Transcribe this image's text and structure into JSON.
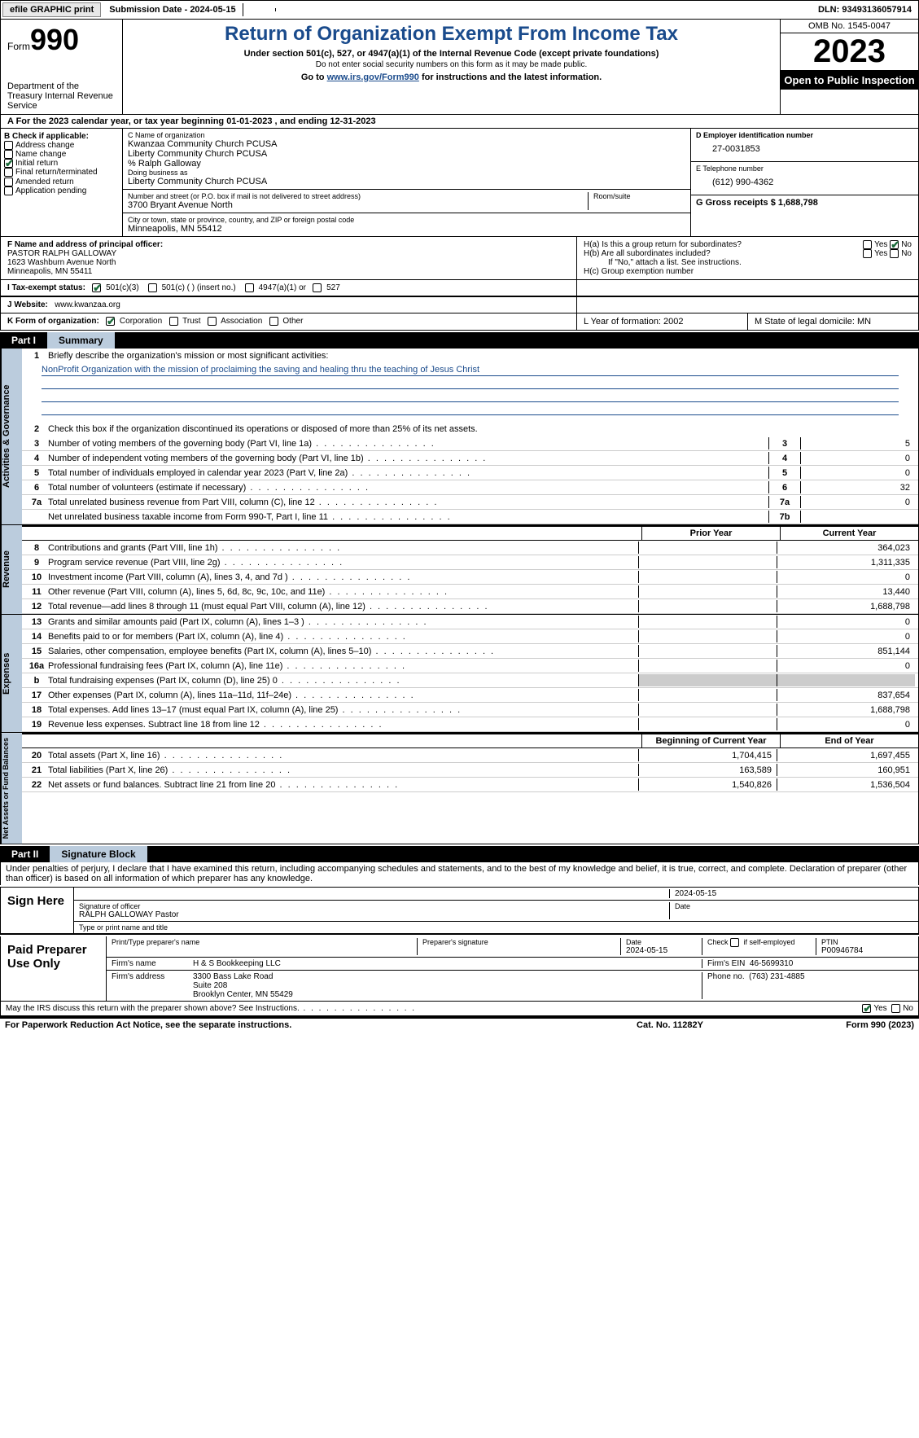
{
  "topbar": {
    "efile": "efile GRAPHIC print",
    "submission_label": "Submission Date - 2024-05-15",
    "dln": "DLN: 93493136057914"
  },
  "header": {
    "form_word": "Form",
    "form_num": "990",
    "title": "Return of Organization Exempt From Income Tax",
    "subtitle": "Under section 501(c), 527, or 4947(a)(1) of the Internal Revenue Code (except private foundations)",
    "note": "Do not enter social security numbers on this form as it may be made public.",
    "goto_pre": "Go to ",
    "goto_link": "www.irs.gov/Form990",
    "goto_post": " for instructions and the latest information.",
    "dept": "Department of the Treasury Internal Revenue Service",
    "omb": "OMB No. 1545-0047",
    "year": "2023",
    "open": "Open to Public Inspection"
  },
  "section_a": "A For the 2023 calendar year, or tax year beginning 01-01-2023    , and ending 12-31-2023",
  "col_b": {
    "header": "B Check if applicable:",
    "items": [
      "Address change",
      "Name change",
      "Initial return",
      "Final return/terminated",
      "Amended return",
      "Application pending"
    ],
    "checked_idx": 2
  },
  "col_c": {
    "name_label": "C Name of organization",
    "name1": "Kwanzaa Community Church PCUSA",
    "name2": "Liberty Community Church PCUSA",
    "name3": "% Ralph Galloway",
    "dba_label": "Doing business as",
    "dba": "Liberty Community Church PCUSA",
    "street_label": "Number and street (or P.O. box if mail is not delivered to street address)",
    "street": "3700 Bryant Avenue North",
    "room_label": "Room/suite",
    "city_label": "City or town, state or province, country, and ZIP or foreign postal code",
    "city": "Minneapolis, MN  55412"
  },
  "col_de": {
    "d_label": "D Employer identification number",
    "d_val": "27-0031853",
    "e_label": "E Telephone number",
    "e_val": "(612) 990-4362",
    "g_label": "G Gross receipts $ 1,688,798"
  },
  "row_f": {
    "f_label": "F  Name and address of principal officer:",
    "f_name": "PASTOR RALPH GALLOWAY",
    "f_addr1": "1623 Washburn Avenue North",
    "f_addr2": "Minneapolis, MN  55411",
    "ha_label": "H(a)  Is this a group return for subordinates?",
    "hb_label": "H(b)  Are all subordinates included?",
    "hb_note": "If \"No,\" attach a list. See instructions.",
    "hc_label": "H(c)  Group exemption number",
    "yes": "Yes",
    "no": "No"
  },
  "row_i": {
    "i_label": "I    Tax-exempt status:",
    "opts": [
      "501(c)(3)",
      "501(c) (  ) (insert no.)",
      "4947(a)(1) or",
      "527"
    ]
  },
  "row_j": {
    "j_label": "J    Website:",
    "j_val": "www.kwanzaa.org"
  },
  "row_k": {
    "k_label": "K Form of organization:",
    "opts": [
      "Corporation",
      "Trust",
      "Association",
      "Other"
    ],
    "l_label": "L Year of formation: 2002",
    "m_label": "M State of legal domicile: MN"
  },
  "part1": {
    "num": "Part I",
    "title": "Summary"
  },
  "summary": {
    "tab1": "Activities & Governance",
    "tab2": "Revenue",
    "tab3": "Expenses",
    "tab4": "Net Assets or Fund Balances",
    "line1_label": "Briefly describe the organization's mission or most significant activities:",
    "line1_mission": "NonProfit Organization with the mission of proclaiming the saving and healing thru the teaching of Jesus Christ",
    "line2": "Check this box      if the organization discontinued its operations or disposed of more than 25% of its net assets.",
    "lines_gov": [
      {
        "n": "3",
        "t": "Number of voting members of the governing body (Part VI, line 1a)",
        "box": "3",
        "v": "5"
      },
      {
        "n": "4",
        "t": "Number of independent voting members of the governing body (Part VI, line 1b)",
        "box": "4",
        "v": "0"
      },
      {
        "n": "5",
        "t": "Total number of individuals employed in calendar year 2023 (Part V, line 2a)",
        "box": "5",
        "v": "0"
      },
      {
        "n": "6",
        "t": "Total number of volunteers (estimate if necessary)",
        "box": "6",
        "v": "32"
      },
      {
        "n": "7a",
        "t": "Total unrelated business revenue from Part VIII, column (C), line 12",
        "box": "7a",
        "v": "0"
      },
      {
        "n": "",
        "t": "Net unrelated business taxable income from Form 990-T, Part I, line 11",
        "box": "7b",
        "v": ""
      }
    ],
    "hdr_prior": "Prior Year",
    "hdr_current": "Current Year",
    "lines_rev": [
      {
        "n": "8",
        "t": "Contributions and grants (Part VIII, line 1h)",
        "p": "",
        "c": "364,023"
      },
      {
        "n": "9",
        "t": "Program service revenue (Part VIII, line 2g)",
        "p": "",
        "c": "1,311,335"
      },
      {
        "n": "10",
        "t": "Investment income (Part VIII, column (A), lines 3, 4, and 7d )",
        "p": "",
        "c": "0"
      },
      {
        "n": "11",
        "t": "Other revenue (Part VIII, column (A), lines 5, 6d, 8c, 9c, 10c, and 11e)",
        "p": "",
        "c": "13,440"
      },
      {
        "n": "12",
        "t": "Total revenue—add lines 8 through 11 (must equal Part VIII, column (A), line 12)",
        "p": "",
        "c": "1,688,798"
      }
    ],
    "lines_exp": [
      {
        "n": "13",
        "t": "Grants and similar amounts paid (Part IX, column (A), lines 1–3 )",
        "p": "",
        "c": "0"
      },
      {
        "n": "14",
        "t": "Benefits paid to or for members (Part IX, column (A), line 4)",
        "p": "",
        "c": "0"
      },
      {
        "n": "15",
        "t": "Salaries, other compensation, employee benefits (Part IX, column (A), lines 5–10)",
        "p": "",
        "c": "851,144"
      },
      {
        "n": "16a",
        "t": "Professional fundraising fees (Part IX, column (A), line 11e)",
        "p": "",
        "c": "0"
      },
      {
        "n": "b",
        "t": "Total fundraising expenses (Part IX, column (D), line 25) 0",
        "p": "shaded",
        "c": "shaded"
      },
      {
        "n": "17",
        "t": "Other expenses (Part IX, column (A), lines 11a–11d, 11f–24e)",
        "p": "",
        "c": "837,654"
      },
      {
        "n": "18",
        "t": "Total expenses. Add lines 13–17 (must equal Part IX, column (A), line 25)",
        "p": "",
        "c": "1,688,798"
      },
      {
        "n": "19",
        "t": "Revenue less expenses. Subtract line 18 from line 12",
        "p": "",
        "c": "0"
      }
    ],
    "hdr_begin": "Beginning of Current Year",
    "hdr_end": "End of Year",
    "lines_net": [
      {
        "n": "20",
        "t": "Total assets (Part X, line 16)",
        "p": "1,704,415",
        "c": "1,697,455"
      },
      {
        "n": "21",
        "t": "Total liabilities (Part X, line 26)",
        "p": "163,589",
        "c": "160,951"
      },
      {
        "n": "22",
        "t": "Net assets or fund balances. Subtract line 21 from line 20",
        "p": "1,540,826",
        "c": "1,536,504"
      }
    ]
  },
  "part2": {
    "num": "Part II",
    "title": "Signature Block",
    "decl": "Under penalties of perjury, I declare that I have examined this return, including accompanying schedules and statements, and to the best of my knowledge and belief, it is true, correct, and complete. Declaration of preparer (other than officer) is based on all information of which preparer has any knowledge."
  },
  "sign": {
    "here": "Sign Here",
    "sig_officer": "Signature of officer",
    "officer": "RALPH GALLOWAY Pastor",
    "type_name": "Type or print name and title",
    "date_label": "Date",
    "date": "2024-05-15",
    "paid": "Paid Preparer Use Only",
    "prep_name_label": "Print/Type preparer's name",
    "prep_sig_label": "Preparer's signature",
    "prep_date": "2024-05-15",
    "check_self": "Check        if self-employed",
    "ptin_label": "PTIN",
    "ptin": "P00946784",
    "firm_name_label": "Firm's name",
    "firm_name": "H & S Bookkeeping LLC",
    "firm_ein_label": "Firm's EIN",
    "firm_ein": "46-5699310",
    "firm_addr_label": "Firm's address",
    "firm_addr": "3300 Bass Lake Road\nSuite 208\nBrooklyn Center, MN  55429",
    "phone_label": "Phone no.",
    "phone": "(763) 231-4885",
    "discuss": "May the IRS discuss this return with the preparer shown above? See Instructions.",
    "yes": "Yes",
    "no": "No"
  },
  "footer": {
    "left": "For Paperwork Reduction Act Notice, see the separate instructions.",
    "mid": "Cat. No. 11282Y",
    "right": "Form 990 (2023)"
  }
}
